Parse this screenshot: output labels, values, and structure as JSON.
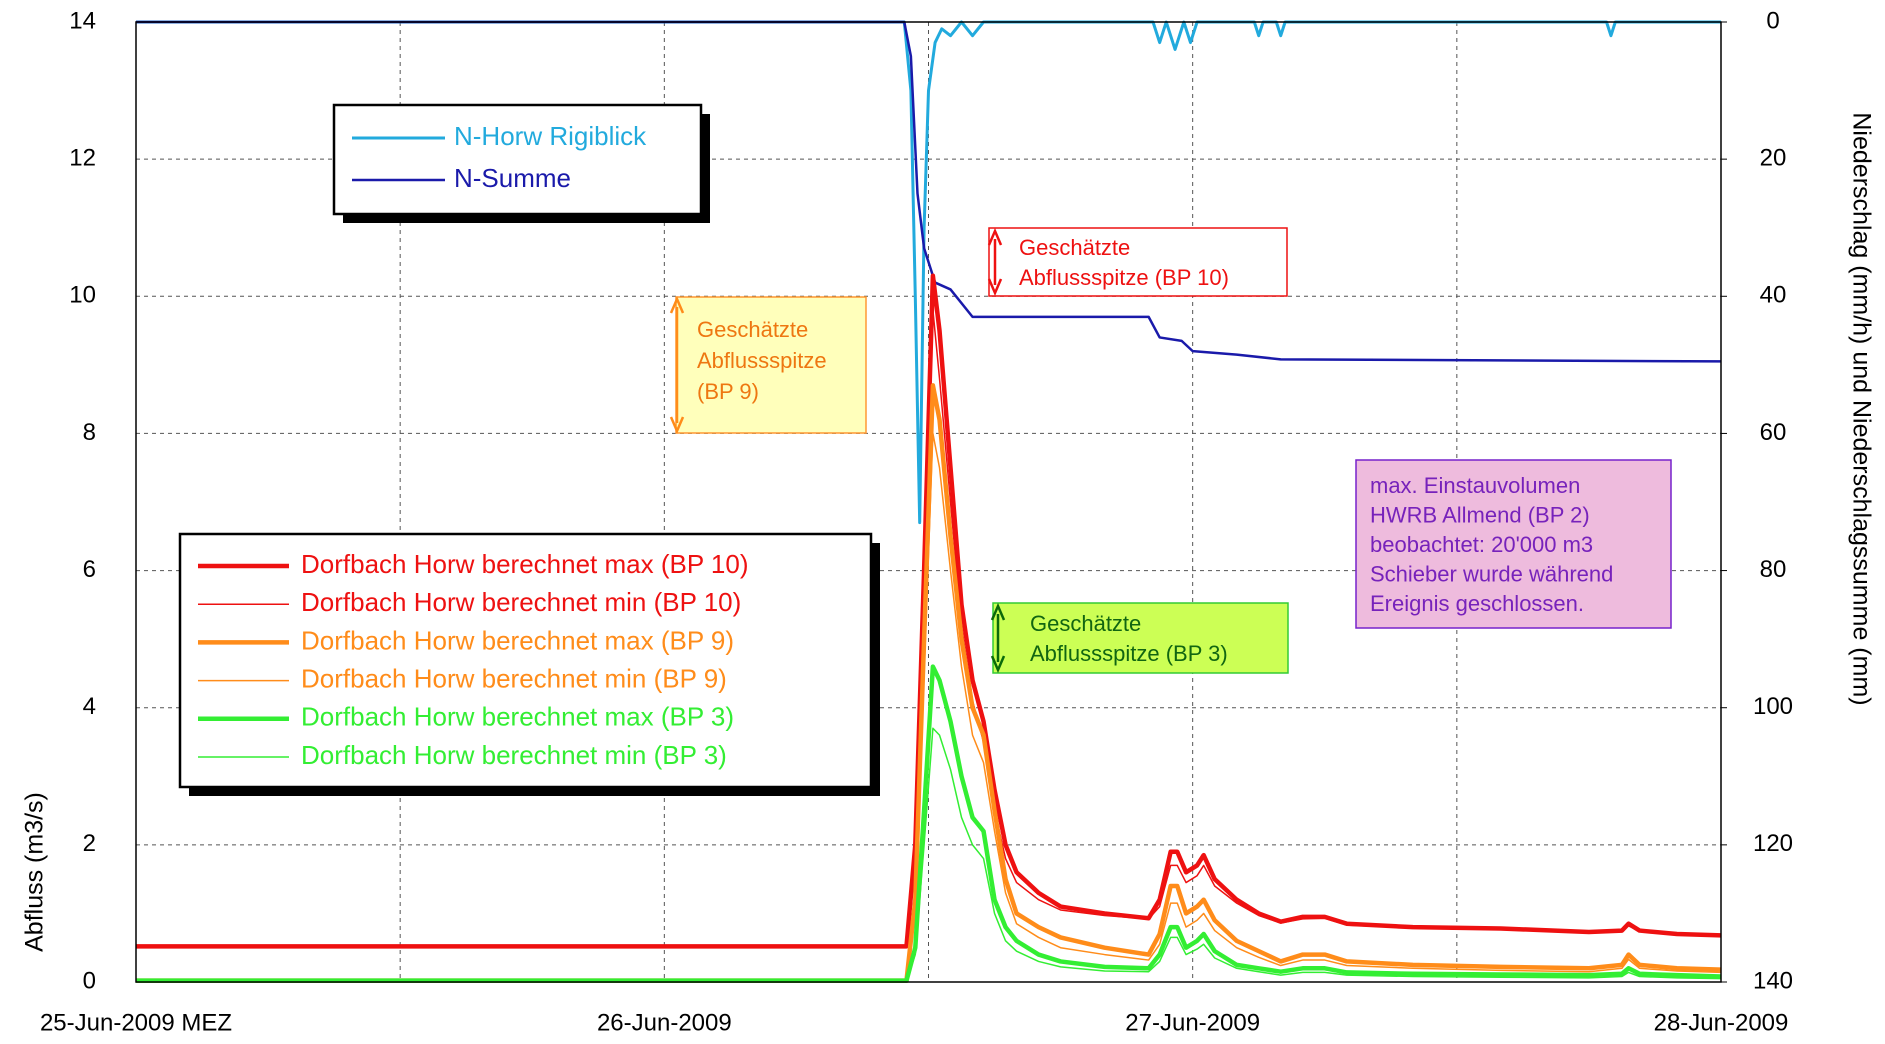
{
  "chart_data": {
    "type": "line",
    "ylabel": "Abfluss (m3/s)",
    "y2label": "Niederschlag (mm/h) und Niederschlagssumme (mm)",
    "xlim": [
      0,
      72
    ],
    "xticks": [
      {
        "value": 0,
        "label": "25-Jun-2009 MEZ"
      },
      {
        "value": 24,
        "label": "26-Jun-2009"
      },
      {
        "value": 48,
        "label": "27-Jun-2009"
      },
      {
        "value": 72,
        "label": "28-Jun-2009"
      }
    ],
    "xminorticks": [
      12,
      36,
      60
    ],
    "ylim": [
      0,
      14
    ],
    "yticks": [
      0,
      2,
      4,
      6,
      8,
      10,
      12,
      14
    ],
    "y2lim": [
      140,
      0
    ],
    "y2ticks": [
      0,
      20,
      40,
      60,
      80,
      100,
      120,
      140
    ],
    "grid": true,
    "x": [
      0,
      35,
      35.4,
      35.8,
      36.2,
      36.5,
      37,
      37.5,
      38,
      38.5,
      39,
      39.5,
      40,
      41,
      42,
      44,
      46,
      46.5,
      47,
      47.3,
      47.7,
      48.2,
      48.5,
      49,
      50,
      51,
      52,
      53,
      54,
      55,
      58,
      62,
      66,
      67.5,
      67.8,
      68.3,
      70,
      72
    ],
    "series": [
      {
        "name": "N-Horw Rigiblick",
        "color": "#22aadd",
        "width": 3,
        "axis": "y2",
        "legend": 0,
        "x": [
          0,
          34.9,
          35.2,
          35.4,
          35.6,
          35.8,
          36,
          36.3,
          36.6,
          37,
          37.5,
          38,
          38.5,
          39,
          46.2,
          46.5,
          46.8,
          47.2,
          47.6,
          47.9,
          48.2,
          50.8,
          51,
          51.2,
          51.8,
          52,
          52.2,
          66.8,
          67,
          67.2,
          72
        ],
        "values": [
          0,
          0,
          10,
          40,
          73,
          30,
          10,
          3,
          1,
          2,
          0,
          2,
          0,
          0,
          0,
          3,
          0,
          4,
          0,
          3,
          0,
          0,
          2,
          0,
          0,
          2,
          0,
          0,
          2,
          0,
          0
        ]
      },
      {
        "name": "N-Summe",
        "color": "#1a1aaa",
        "width": 2.5,
        "axis": "y2",
        "legend": 0,
        "x": [
          0,
          34.9,
          35.2,
          35.5,
          35.8,
          36.3,
          37,
          38,
          46,
          46.5,
          47.5,
          48,
          50,
          52,
          72
        ],
        "values": [
          0,
          0,
          5,
          25,
          33,
          38,
          39,
          43,
          43,
          46,
          46.5,
          48,
          48.5,
          49.2,
          49.5
        ]
      },
      {
        "name": "Dorfbach Horw berechnet max (BP 10)",
        "color": "#ee1111",
        "width": 4.5,
        "legend": 1,
        "values": [
          0.52,
          0.52,
          2,
          6,
          10.3,
          9.5,
          7.5,
          5.5,
          4.4,
          3.8,
          2.8,
          2.0,
          1.6,
          1.3,
          1.1,
          1.0,
          0.93,
          1.2,
          1.9,
          1.9,
          1.6,
          1.7,
          1.85,
          1.5,
          1.2,
          1.0,
          0.88,
          0.95,
          0.95,
          0.85,
          0.8,
          0.78,
          0.73,
          0.75,
          0.85,
          0.75,
          0.7,
          0.68
        ]
      },
      {
        "name": "Dorfbach Horw berechnet min (BP 10)",
        "color": "#ee1111",
        "width": 1.5,
        "legend": 1,
        "values": [
          0.52,
          0.52,
          1.8,
          5.5,
          9.8,
          8.8,
          7.0,
          5.2,
          4.1,
          3.5,
          2.5,
          1.8,
          1.45,
          1.2,
          1.05,
          0.97,
          0.92,
          1.1,
          1.7,
          1.7,
          1.45,
          1.55,
          1.7,
          1.4,
          1.15,
          0.97,
          0.86,
          0.92,
          0.93,
          0.83,
          0.79,
          0.77,
          0.72,
          0.74,
          0.82,
          0.74,
          0.69,
          0.67
        ]
      },
      {
        "name": "Dorfbach Horw berechnet max (BP 9)",
        "color": "#ff8c1a",
        "width": 4.5,
        "legend": 1,
        "values": [
          0.02,
          0.02,
          1.2,
          5,
          8.7,
          8.2,
          6.5,
          5.0,
          4.0,
          3.6,
          2.5,
          1.5,
          1.0,
          0.8,
          0.65,
          0.5,
          0.4,
          0.7,
          1.4,
          1.4,
          1.0,
          1.1,
          1.2,
          0.9,
          0.6,
          0.45,
          0.3,
          0.4,
          0.4,
          0.3,
          0.25,
          0.22,
          0.2,
          0.25,
          0.4,
          0.25,
          0.2,
          0.18
        ]
      },
      {
        "name": "Dorfbach Horw berechnet min (BP 9)",
        "color": "#ff8c1a",
        "width": 1.5,
        "legend": 1,
        "values": [
          0.02,
          0.02,
          1.0,
          4.5,
          8.0,
          7.5,
          6.0,
          4.6,
          3.6,
          3.2,
          2.2,
          1.3,
          0.85,
          0.65,
          0.5,
          0.4,
          0.32,
          0.55,
          1.15,
          1.15,
          0.8,
          0.9,
          1.0,
          0.75,
          0.5,
          0.36,
          0.24,
          0.32,
          0.32,
          0.24,
          0.2,
          0.17,
          0.15,
          0.2,
          0.33,
          0.2,
          0.16,
          0.14
        ]
      },
      {
        "name": "Dorfbach Horw berechnet max (BP 3)",
        "color": "#33ee33",
        "width": 4.5,
        "legend": 1,
        "values": [
          0.02,
          0.02,
          0.5,
          2.5,
          4.6,
          4.4,
          3.8,
          3.0,
          2.4,
          2.2,
          1.2,
          0.8,
          0.6,
          0.4,
          0.3,
          0.22,
          0.2,
          0.4,
          0.8,
          0.8,
          0.5,
          0.6,
          0.7,
          0.45,
          0.25,
          0.2,
          0.15,
          0.2,
          0.2,
          0.14,
          0.12,
          0.11,
          0.1,
          0.12,
          0.2,
          0.12,
          0.1,
          0.08
        ]
      },
      {
        "name": "Dorfbach Horw berechnet min (BP 3)",
        "color": "#33ee33",
        "width": 1.5,
        "legend": 1,
        "values": [
          0.02,
          0.02,
          0.4,
          2.0,
          3.7,
          3.6,
          3.1,
          2.4,
          2.0,
          1.8,
          1.0,
          0.6,
          0.45,
          0.3,
          0.22,
          0.16,
          0.15,
          0.3,
          0.65,
          0.65,
          0.4,
          0.48,
          0.55,
          0.35,
          0.2,
          0.15,
          0.1,
          0.14,
          0.14,
          0.1,
          0.08,
          0.07,
          0.06,
          0.08,
          0.14,
          0.08,
          0.06,
          0.05
        ]
      }
    ],
    "annotations": [
      {
        "text": [
          "Geschätzte",
          "Abflussspitze (BP 10)"
        ],
        "color": "#ee1111",
        "fill": "#ffffff",
        "border": "#ee1111",
        "arrow": "#ee1111"
      },
      {
        "text": [
          "Geschätzte",
          "Abflussspitze",
          "(BP 9)"
        ],
        "color": "#ee7711",
        "fill": "#ffffbb",
        "border": "#ff9933",
        "arrow": "#ff8c1a"
      },
      {
        "text": [
          "Geschätzte",
          "Abflussspitze (BP 3)"
        ],
        "color": "#116611",
        "fill": "#ccff55",
        "border": "#33cc33",
        "arrow": "#0a6a0a"
      },
      {
        "text": [
          "max. Einstauvolumen",
          "HWRB Allmend (BP 2)",
          "beobachtet: 20'000 m3",
          "Schieber wurde während",
          "Ereignis geschlossen."
        ],
        "color": "#7722bb",
        "fill": "#eebbdd",
        "border": "#7722cc"
      }
    ]
  }
}
